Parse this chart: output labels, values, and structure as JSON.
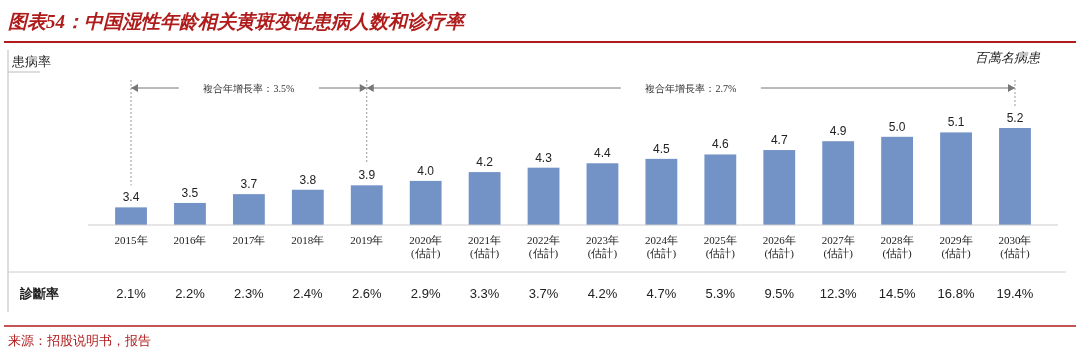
{
  "chart_data": {
    "type": "bar",
    "title": "图表54：中国湿性年龄相关黄斑变性患病人数和诊疗率",
    "categories": [
      "2015年",
      "2016年",
      "2017年",
      "2018年",
      "2019年",
      "2020年\n(估計)",
      "2021年\n(估計)",
      "2022年\n(估計)",
      "2023年\n(估計)",
      "2024年\n(估計)",
      "2025年\n(估計)",
      "2026年\n(估計)",
      "2027年\n(估計)",
      "2028年\n(估計)",
      "2029年\n(估計)",
      "2030年\n(估計)"
    ],
    "values": [
      3.4,
      3.5,
      3.7,
      3.8,
      3.9,
      4.0,
      4.2,
      4.3,
      4.4,
      4.5,
      4.6,
      4.7,
      4.9,
      5.0,
      5.1,
      5.2
    ],
    "value_labels": [
      "3.4",
      "3.5",
      "3.7",
      "3.8",
      "3.9",
      "4.0",
      "4.2",
      "4.3",
      "4.4",
      "4.5",
      "4.6",
      "4.7",
      "4.9",
      "5.0",
      "5.1",
      "5.2"
    ],
    "color": "#7392c6",
    "ylim": [
      3.0,
      5.2
    ],
    "tick_labels": "x",
    "annotations": [
      "患病率",
      "百萬名病患",
      "複合年增長率：3.5%",
      "複合年增長率：2.7%",
      "来源：招股说明书，报告",
      "診斷率",
      "2.1%",
      "2.2%",
      "2.3%",
      "2.4%",
      "2.6%",
      "2.9%",
      "3.3%",
      "3.7%",
      "4.2%",
      "4.7%",
      "5.3%",
      "9.5%",
      "12.3%",
      "14.5%",
      "16.8%",
      "19.4%"
    ]
  }
}
